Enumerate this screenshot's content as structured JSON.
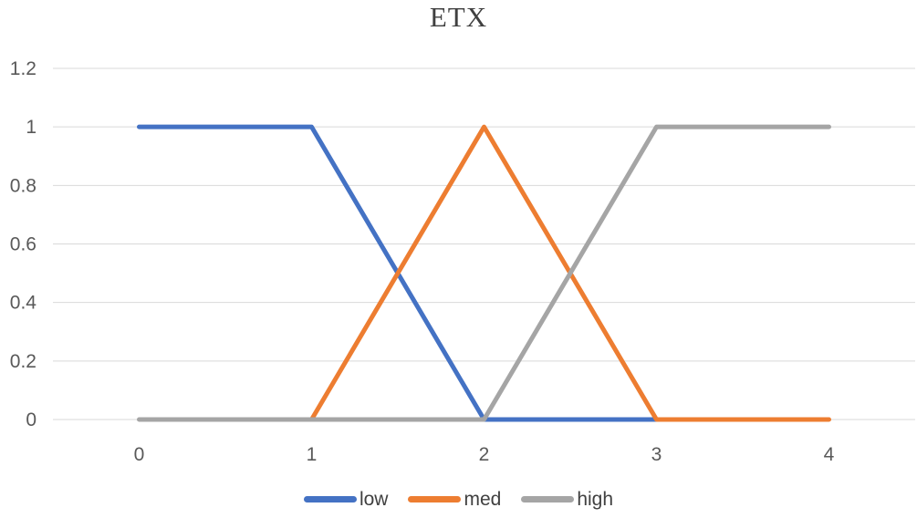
{
  "chart_data": {
    "type": "line",
    "title": "ETX",
    "x_tick_labels": [
      "0",
      "1",
      "2",
      "3",
      "4"
    ],
    "y_ticks": [
      0,
      0.2,
      0.4,
      0.6,
      0.8,
      1,
      1.2
    ],
    "y_tick_labels": [
      "0",
      "0.2",
      "0.4",
      "0.6",
      "0.8",
      "1",
      "1.2"
    ],
    "ylim": [
      0,
      1.2
    ],
    "grid": true,
    "gridline_color": "#D9D9D9",
    "axis_label_color": "#595959",
    "title_color": "#404040",
    "legend_position": "bottom",
    "series": [
      {
        "name": "low",
        "color": "#4472C4",
        "x": [
          0,
          1,
          2,
          3
        ],
        "values": [
          1,
          1,
          0,
          0
        ]
      },
      {
        "name": "med",
        "color": "#ED7D31",
        "x": [
          1,
          2,
          3,
          4
        ],
        "values": [
          0,
          1,
          0,
          0
        ]
      },
      {
        "name": "high",
        "color": "#A5A5A5",
        "x": [
          0,
          1,
          2,
          3,
          4
        ],
        "values": [
          0,
          0,
          0,
          1,
          1
        ]
      }
    ]
  }
}
